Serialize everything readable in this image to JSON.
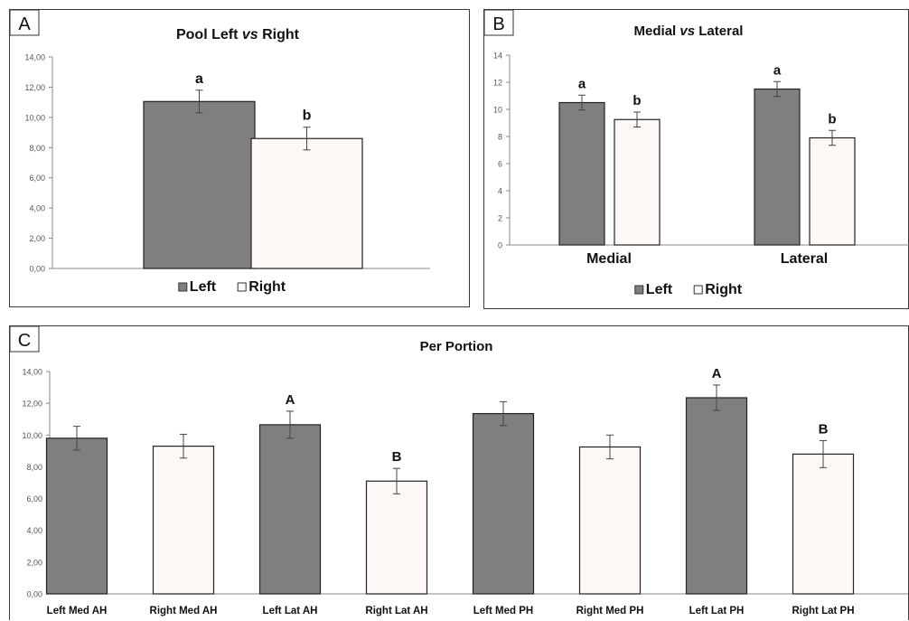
{
  "chart_data": [
    {
      "panel_label": "A",
      "type": "bar",
      "title": "Pool Left vs Right",
      "categories": [
        ""
      ],
      "series": [
        {
          "name": "Left",
          "values": [
            11.05
          ],
          "errors": [
            0.75
          ],
          "letters": [
            "a"
          ],
          "color": "#7f7f7f"
        },
        {
          "name": "Right",
          "values": [
            8.6
          ],
          "errors": [
            0.75
          ],
          "letters": [
            "b"
          ],
          "color": "#fdf8f6"
        }
      ],
      "ylim": [
        0,
        14
      ],
      "yticks": [
        "0,00",
        "2,00",
        "4,00",
        "6,00",
        "8,00",
        "10,00",
        "12,00",
        "14,00"
      ],
      "grid": false,
      "legend": "bottom"
    },
    {
      "panel_label": "B",
      "type": "bar",
      "title": "Medial vs Lateral",
      "categories": [
        "Medial",
        "Lateral"
      ],
      "series": [
        {
          "name": "Left",
          "values": [
            10.5,
            11.5
          ],
          "errors": [
            0.55,
            0.55
          ],
          "letters": [
            "a",
            "a"
          ],
          "color": "#7f7f7f"
        },
        {
          "name": "Right",
          "values": [
            9.25,
            7.9
          ],
          "errors": [
            0.55,
            0.55
          ],
          "letters": [
            "b",
            "b"
          ],
          "color": "#fdf8f6"
        }
      ],
      "ylim": [
        0,
        14
      ],
      "yticks": [
        "0",
        "2",
        "4",
        "6",
        "8",
        "10",
        "12",
        "14"
      ],
      "grid": false,
      "legend": "bottom"
    },
    {
      "panel_label": "C",
      "type": "bar",
      "title": "Per Portion",
      "categories": [
        "Left Med AH",
        "Right Med AH",
        "Left Lat AH",
        "Right Lat AH",
        "Left Med PH",
        "Right Med PH",
        "Left Lat PH",
        "Right Lat PH"
      ],
      "series": [
        {
          "values": [
            9.8,
            9.3,
            10.65,
            7.1,
            11.35,
            9.25,
            12.35,
            8.8
          ],
          "errors": [
            0.75,
            0.75,
            0.85,
            0.8,
            0.75,
            0.75,
            0.8,
            0.85
          ],
          "letters": [
            "",
            "",
            "A",
            "B",
            "",
            "",
            "A",
            "B"
          ],
          "colors": [
            "#7f7f7f",
            "#fdf8f6",
            "#7f7f7f",
            "#fdf8f6",
            "#7f7f7f",
            "#fdf8f6",
            "#7f7f7f",
            "#fdf8f6"
          ]
        }
      ],
      "ylim": [
        0,
        14
      ],
      "yticks": [
        "0,00",
        "2,00",
        "4,00",
        "6,00",
        "8,00",
        "10,00",
        "12,00",
        "14,00"
      ],
      "grid": false,
      "legend": "none"
    }
  ]
}
